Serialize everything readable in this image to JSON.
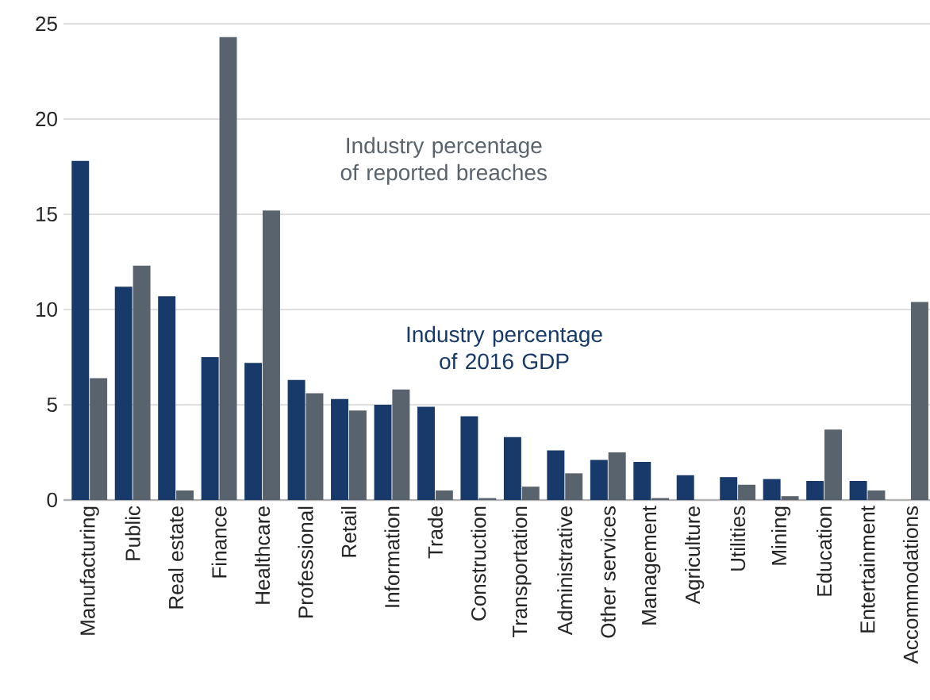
{
  "chart_data": {
    "type": "bar",
    "categories": [
      "Manufacturing",
      "Public",
      "Real estate",
      "Finance",
      "Healthcare",
      "Professional",
      "Retail",
      "Information",
      "Trade",
      "Construction",
      "Transportation",
      "Administrative",
      "Other services",
      "Management",
      "Agriculture",
      "Utilities",
      "Mining",
      "Education",
      "Entertainment",
      "Accommodations"
    ],
    "series": [
      {
        "name": "Industry percentage of 2016 GDP",
        "color": "#173a6b",
        "values": [
          17.8,
          11.2,
          10.7,
          7.5,
          7.2,
          6.3,
          5.3,
          5.0,
          4.9,
          4.4,
          3.3,
          2.6,
          2.1,
          2.0,
          1.3,
          1.2,
          1.1,
          1.0,
          1.0,
          null
        ]
      },
      {
        "name": "Industry percentage of reported breaches",
        "color": "#59636e",
        "values": [
          6.4,
          12.3,
          0.5,
          24.3,
          15.2,
          5.6,
          4.7,
          5.8,
          0.5,
          0.1,
          0.7,
          1.4,
          2.5,
          0.1,
          null,
          0.8,
          0.2,
          3.7,
          0.5,
          10.4
        ]
      }
    ],
    "ylim": [
      0,
      25
    ],
    "yticks": [
      0,
      5,
      10,
      15,
      20,
      25
    ],
    "grid": "y",
    "legend": false
  }
}
